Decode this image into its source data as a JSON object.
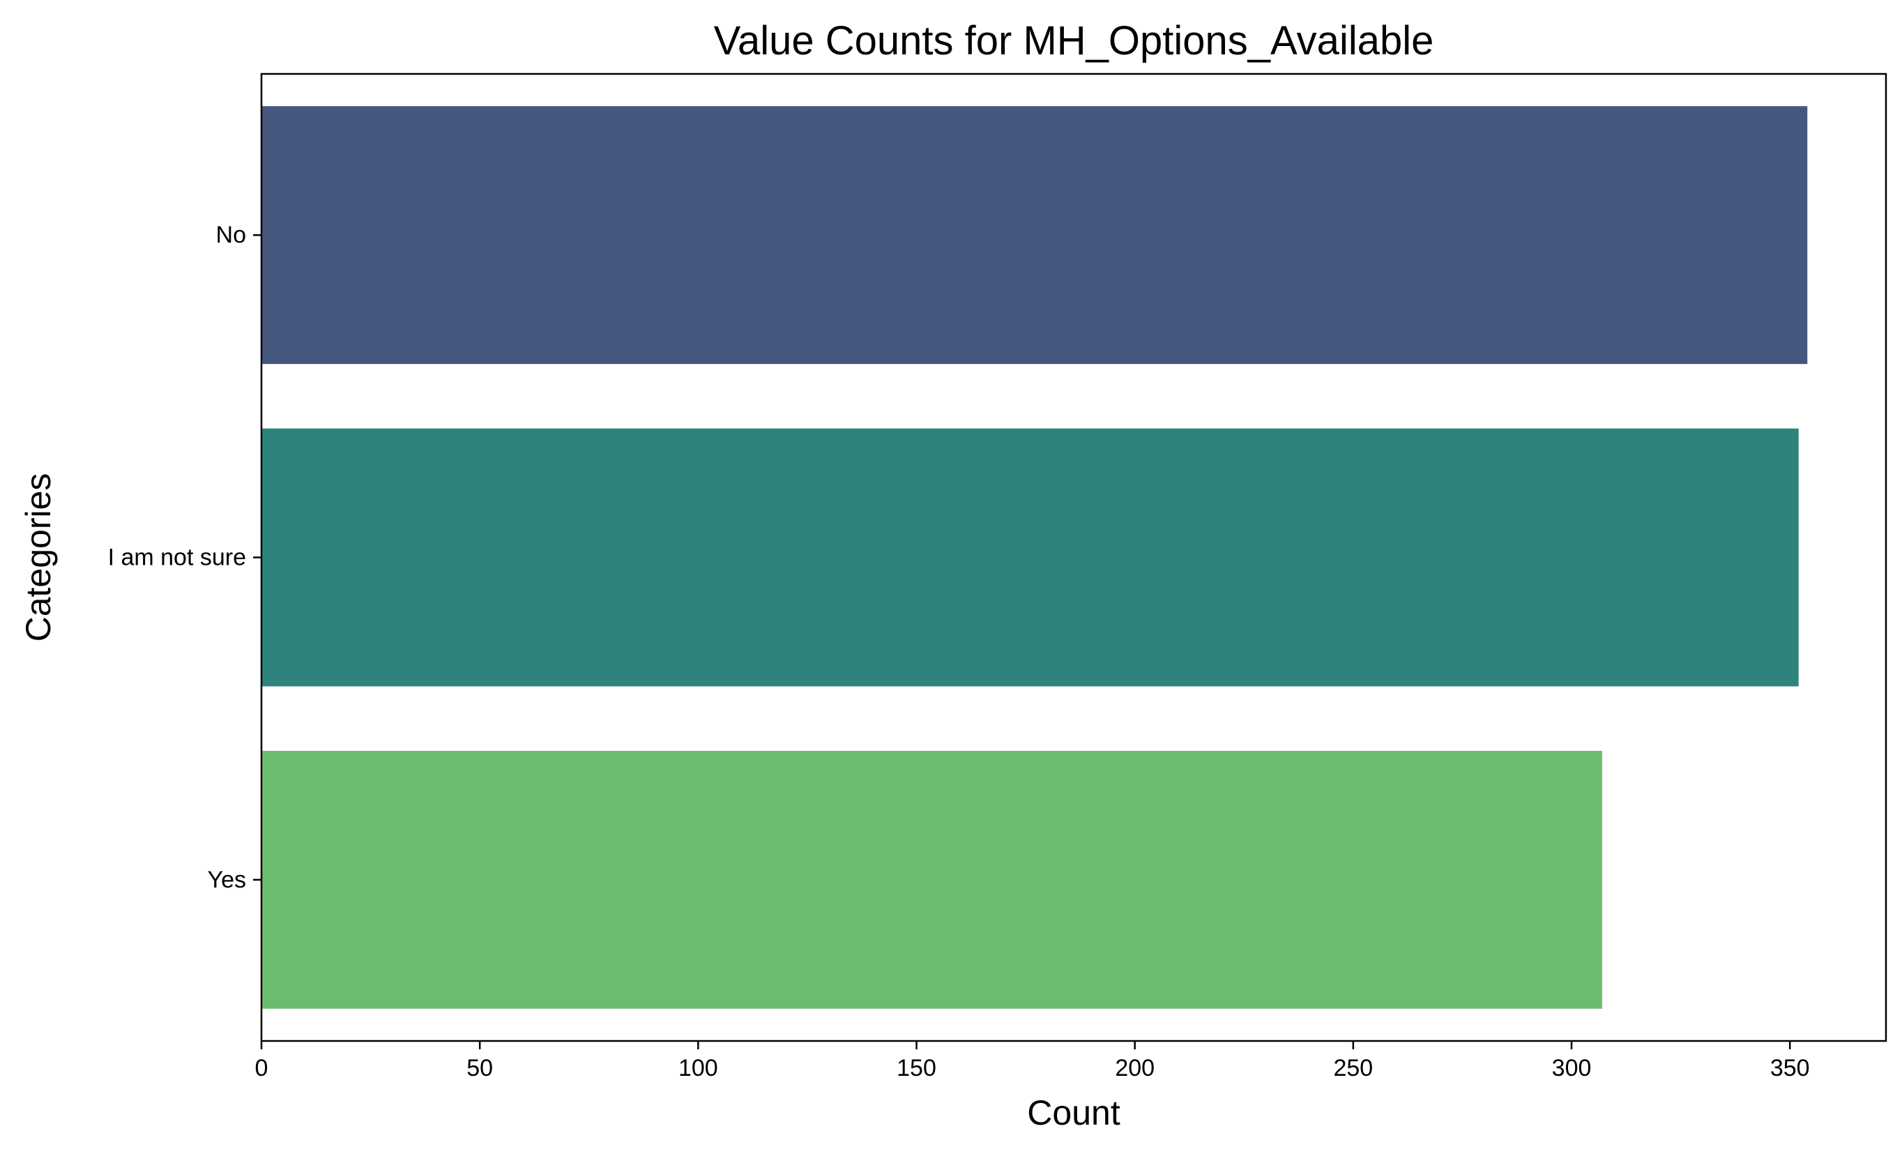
{
  "chart_data": {
    "type": "bar",
    "orientation": "horizontal",
    "title": "Value Counts for MH_Options_Available",
    "xlabel": "Count",
    "ylabel": "Categories",
    "categories": [
      "No",
      "I am not sure",
      "Yes"
    ],
    "values": [
      354,
      352,
      307
    ],
    "colors": [
      "#46577f",
      "#2e837c",
      "#6cbc6e"
    ],
    "xlim": [
      0,
      372
    ],
    "xticks": [
      0,
      50,
      100,
      150,
      200,
      250,
      300,
      350
    ],
    "grid": false,
    "legend": "none"
  }
}
